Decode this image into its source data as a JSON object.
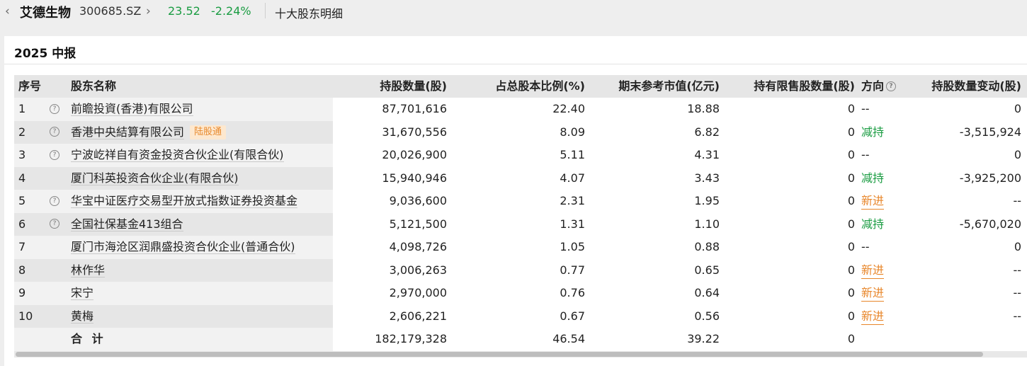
{
  "header": {
    "stock_name": "艾德生物",
    "stock_code": "300685.SZ",
    "price": "23.52",
    "change": "-2.24%",
    "page_title": "十大股东明细",
    "back_icon": "chevron-left-icon",
    "forward_icon": "chevron-right-icon"
  },
  "section": {
    "title": "2025 中报"
  },
  "table": {
    "columns": {
      "index": "序号",
      "name": "股东名称",
      "shares": "持股数量(股)",
      "ratio": "占总股本比例(%)",
      "market_value": "期末参考市值(亿元)",
      "restricted": "持有限售股数量(股)",
      "direction": "方向",
      "change": "持股数量变动(股)"
    },
    "rows": [
      {
        "index": "1",
        "has_help": true,
        "name": "前瞻投資(香港)有限公司",
        "tag": "",
        "shares": "87,701,616",
        "ratio": "22.40",
        "market_value": "18.88",
        "restricted": "0",
        "direction": "--",
        "direction_type": "none",
        "change": "0"
      },
      {
        "index": "2",
        "has_help": true,
        "name": "香港中央結算有限公司",
        "tag": "陆股通",
        "shares": "31,670,556",
        "ratio": "8.09",
        "market_value": "6.82",
        "restricted": "0",
        "direction": "减持",
        "direction_type": "down",
        "change": "-3,515,924"
      },
      {
        "index": "3",
        "has_help": true,
        "name": "宁波屹祥自有资金投资合伙企业(有限合伙)",
        "tag": "",
        "shares": "20,026,900",
        "ratio": "5.11",
        "market_value": "4.31",
        "restricted": "0",
        "direction": "--",
        "direction_type": "none",
        "change": "0"
      },
      {
        "index": "4",
        "has_help": false,
        "name": "厦门科英投资合伙企业(有限合伙)",
        "tag": "",
        "shares": "15,940,946",
        "ratio": "4.07",
        "market_value": "3.43",
        "restricted": "0",
        "direction": "减持",
        "direction_type": "down",
        "change": "-3,925,200"
      },
      {
        "index": "5",
        "has_help": true,
        "name": "华宝中证医疗交易型开放式指数证券投资基金",
        "tag": "",
        "shares": "9,036,600",
        "ratio": "2.31",
        "market_value": "1.95",
        "restricted": "0",
        "direction": "新进",
        "direction_type": "up",
        "change": "--"
      },
      {
        "index": "6",
        "has_help": true,
        "name": "全国社保基金413组合",
        "tag": "",
        "shares": "5,121,500",
        "ratio": "1.31",
        "market_value": "1.10",
        "restricted": "0",
        "direction": "减持",
        "direction_type": "down",
        "change": "-5,670,020"
      },
      {
        "index": "7",
        "has_help": false,
        "name": "厦门市海沧区润鼎盛投资合伙企业(普通合伙)",
        "tag": "",
        "shares": "4,098,726",
        "ratio": "1.05",
        "market_value": "0.88",
        "restricted": "0",
        "direction": "--",
        "direction_type": "none",
        "change": "0"
      },
      {
        "index": "8",
        "has_help": false,
        "name": "林作华",
        "tag": "",
        "shares": "3,006,263",
        "ratio": "0.77",
        "market_value": "0.65",
        "restricted": "0",
        "direction": "新进",
        "direction_type": "up",
        "change": "--"
      },
      {
        "index": "9",
        "has_help": false,
        "name": "宋宁",
        "tag": "",
        "shares": "2,970,000",
        "ratio": "0.76",
        "market_value": "0.64",
        "restricted": "0",
        "direction": "新进",
        "direction_type": "up",
        "change": "--"
      },
      {
        "index": "10",
        "has_help": false,
        "name": "黄梅",
        "tag": "",
        "shares": "2,606,221",
        "ratio": "0.67",
        "market_value": "0.56",
        "restricted": "0",
        "direction": "新进",
        "direction_type": "up",
        "change": "--"
      }
    ],
    "total": {
      "label": "合 计",
      "shares": "182,179,328",
      "ratio": "46.54",
      "market_value": "39.22",
      "restricted": "0"
    }
  },
  "colors": {
    "down": "#1a9c42",
    "up": "#e8862a",
    "tag_text": "#e88a2e",
    "tag_bg": "#fde8cf"
  }
}
